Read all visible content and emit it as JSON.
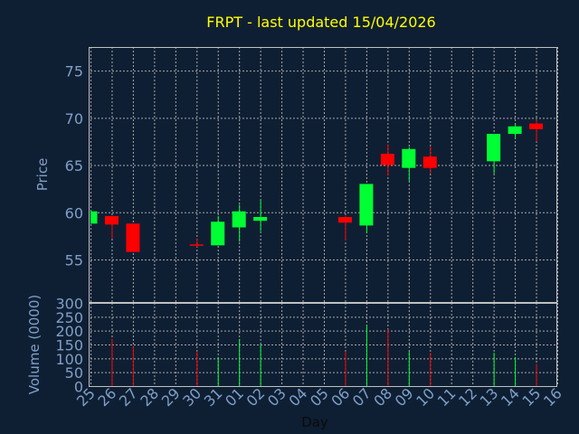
{
  "chart_data": {
    "type": "candlestick",
    "title": "FRPT - last updated 15/04/2026",
    "xlabel": "Day",
    "colors": {
      "background": "#0f1f33",
      "up": "#00ff33",
      "down": "#ff0000",
      "title": "#ffff00",
      "ticks": "#7f9fc8",
      "grid": "#c0c0c0"
    },
    "price_panel": {
      "ylabel": "Price",
      "ylim": [
        50.5,
        77.5
      ],
      "yticks": [
        55,
        60,
        65,
        70,
        75
      ],
      "grid": true
    },
    "volume_panel": {
      "ylabel": "Volume (0000)",
      "ylim": [
        0,
        300
      ],
      "yticks": [
        0,
        50,
        100,
        150,
        200,
        250,
        300
      ],
      "grid": true
    },
    "x_ticks": [
      "25",
      "26",
      "27",
      "28",
      "29",
      "30",
      "31",
      "01",
      "02",
      "03",
      "04",
      "05",
      "06",
      "07",
      "08",
      "09",
      "10",
      "11",
      "12",
      "13",
      "14",
      "15",
      "16"
    ],
    "candles": [
      {
        "day": "25",
        "open": 58.8,
        "high": 60.2,
        "low": 58.8,
        "close": 60.1,
        "volume": 0
      },
      {
        "day": "26",
        "open": 59.6,
        "high": 59.6,
        "low": 57.2,
        "close": 58.7,
        "volume": 170
      },
      {
        "day": "27",
        "open": 58.8,
        "high": 58.8,
        "low": 55.8,
        "close": 55.8,
        "volume": 145
      },
      {
        "day": "30",
        "open": 56.6,
        "high": 57.2,
        "low": 56.3,
        "close": 56.5,
        "volume": 125
      },
      {
        "day": "31",
        "open": 56.5,
        "high": 59.6,
        "low": 56.5,
        "close": 59.0,
        "volume": 105
      },
      {
        "day": "01",
        "open": 58.4,
        "high": 60.8,
        "low": 56.9,
        "close": 60.1,
        "volume": 170
      },
      {
        "day": "02",
        "open": 59.1,
        "high": 61.3,
        "low": 58.0,
        "close": 59.5,
        "volume": 150
      },
      {
        "day": "06",
        "open": 59.5,
        "high": 59.6,
        "low": 57.0,
        "close": 58.9,
        "volume": 125
      },
      {
        "day": "07",
        "open": 58.6,
        "high": 63.0,
        "low": 57.8,
        "close": 63.0,
        "volume": 220
      },
      {
        "day": "08",
        "open": 66.2,
        "high": 67.2,
        "low": 63.9,
        "close": 65.0,
        "volume": 205
      },
      {
        "day": "09",
        "open": 64.7,
        "high": 66.9,
        "low": 63.3,
        "close": 66.7,
        "volume": 125
      },
      {
        "day": "10",
        "open": 65.9,
        "high": 67.0,
        "low": 64.1,
        "close": 64.7,
        "volume": 120
      },
      {
        "day": "13",
        "open": 65.4,
        "high": 68.3,
        "low": 64.1,
        "close": 68.3,
        "volume": 120
      },
      {
        "day": "14",
        "open": 68.3,
        "high": 69.4,
        "low": 67.8,
        "close": 69.1,
        "volume": 105
      },
      {
        "day": "15",
        "open": 69.4,
        "high": 69.8,
        "low": 67.5,
        "close": 68.8,
        "volume": 80
      }
    ]
  }
}
